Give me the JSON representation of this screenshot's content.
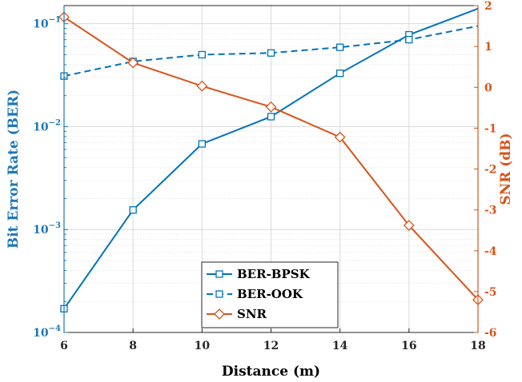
{
  "chart_data": {
    "type": "line",
    "x": [
      6,
      8,
      10,
      12,
      14,
      16,
      18
    ],
    "xlabel": "Distance (m)",
    "xlim": [
      6,
      18
    ],
    "x_ticks": [
      "6",
      "8",
      "10",
      "12",
      "14",
      "16",
      "18"
    ],
    "y_left": {
      "label": "Bit Error Rate (BER)",
      "scale": "log",
      "lim": [
        0.0001,
        0.15
      ],
      "ticks": [
        0.0001,
        0.001,
        0.01,
        0.1
      ],
      "tick_labels": [
        {
          "base": "10",
          "exp": "−4"
        },
        {
          "base": "10",
          "exp": "−3"
        },
        {
          "base": "10",
          "exp": "−2"
        },
        {
          "base": "10",
          "exp": "−1"
        }
      ]
    },
    "y_right": {
      "label": "SNR (dB)",
      "scale": "linear",
      "lim": [
        -6,
        2
      ],
      "ticks": [
        -6,
        -5,
        -4,
        -3,
        -2,
        -1,
        0,
        1,
        2
      ],
      "tick_labels": [
        "-6",
        "-5",
        "-4",
        "-3",
        "-2",
        "-1",
        "0",
        "1",
        "2"
      ]
    },
    "grid": true,
    "legend_position": "bottom-center",
    "series": [
      {
        "name": "BER-BPSK",
        "axis": "left",
        "style": "solid",
        "marker": "square",
        "color": "#0072bd",
        "values": [
          0.00017,
          0.00155,
          0.0068,
          0.0125,
          0.033,
          0.078,
          0.14
        ]
      },
      {
        "name": "BER-OOK",
        "axis": "left",
        "style": "dashed",
        "marker": "square",
        "color": "#0072bd",
        "values": [
          0.031,
          0.043,
          0.05,
          0.052,
          0.059,
          0.07,
          0.095
        ]
      },
      {
        "name": "SNR",
        "axis": "right",
        "style": "solid",
        "marker": "diamond",
        "color": "#d95319",
        "values": [
          1.72,
          0.6,
          0.03,
          -0.48,
          -1.22,
          -3.38,
          -5.2
        ]
      }
    ],
    "colors": {
      "left_axis": "#1f77b4",
      "right_axis": "#d6541a",
      "grid": "#d9d9d9"
    }
  }
}
